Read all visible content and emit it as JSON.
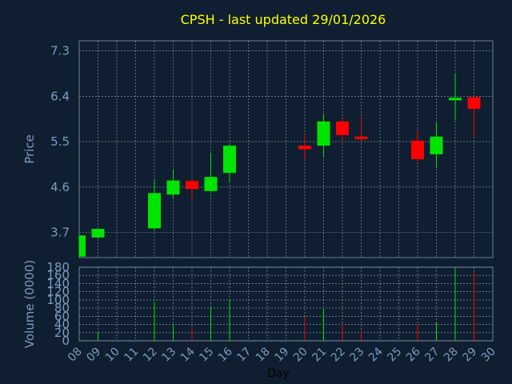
{
  "chart_data": [
    {
      "type": "candlestick",
      "title": "CPSH - last updated 29/01/2026",
      "ylabel": "Price",
      "xlabel": "Day",
      "ylim": [
        3.2,
        7.5
      ],
      "yticks": [
        "3.7",
        "4.6",
        "5.5",
        "6.4",
        "7.3"
      ],
      "x_ticks": [
        "08",
        "09",
        "10",
        "11",
        "12",
        "13",
        "14",
        "15",
        "16",
        "17",
        "18",
        "19",
        "20",
        "21",
        "22",
        "23",
        "24",
        "25",
        "26",
        "27",
        "28",
        "29",
        "30"
      ],
      "grid": true,
      "candles": [
        {
          "day": "08",
          "open": 3.22,
          "high": 3.65,
          "low": 3.2,
          "close": 3.64
        },
        {
          "day": "09",
          "open": 3.6,
          "high": 3.78,
          "low": 3.58,
          "close": 3.77
        },
        {
          "day": "12",
          "open": 3.78,
          "high": 4.75,
          "low": 3.76,
          "close": 4.48
        },
        {
          "day": "13",
          "open": 4.45,
          "high": 4.95,
          "low": 4.38,
          "close": 4.73
        },
        {
          "day": "14",
          "open": 4.72,
          "high": 4.74,
          "low": 4.35,
          "close": 4.56
        },
        {
          "day": "15",
          "open": 4.52,
          "high": 5.28,
          "low": 4.48,
          "close": 4.8
        },
        {
          "day": "16",
          "open": 4.88,
          "high": 5.45,
          "low": 4.7,
          "close": 5.42
        },
        {
          "day": "20",
          "open": 5.42,
          "high": 5.65,
          "low": 5.15,
          "close": 5.35
        },
        {
          "day": "21",
          "open": 5.42,
          "high": 6.05,
          "low": 5.2,
          "close": 5.9
        },
        {
          "day": "22",
          "open": 5.9,
          "high": 5.95,
          "low": 5.48,
          "close": 5.63
        },
        {
          "day": "23",
          "open": 5.6,
          "high": 6.0,
          "low": 5.52,
          "close": 5.55
        },
        {
          "day": "26",
          "open": 5.52,
          "high": 5.72,
          "low": 5.08,
          "close": 5.15
        },
        {
          "day": "27",
          "open": 5.25,
          "high": 5.88,
          "low": 4.98,
          "close": 5.6
        },
        {
          "day": "28",
          "open": 6.32,
          "high": 6.85,
          "low": 5.92,
          "close": 6.37
        },
        {
          "day": "29",
          "open": 6.38,
          "high": 6.4,
          "low": 5.58,
          "close": 6.15
        }
      ]
    },
    {
      "type": "bar",
      "ylabel": "Volume (0000)",
      "ylim": [
        0,
        180
      ],
      "yticks": [
        "0",
        "20",
        "40",
        "60",
        "80",
        "100",
        "120",
        "140",
        "160",
        "180"
      ],
      "categories": [
        "08",
        "09",
        "12",
        "13",
        "14",
        "15",
        "16",
        "20",
        "21",
        "22",
        "23",
        "26",
        "27",
        "28",
        "29"
      ],
      "values": [
        2,
        20,
        95,
        40,
        32,
        85,
        100,
        58,
        78,
        42,
        22,
        40,
        45,
        178,
        168
      ],
      "up": [
        true,
        true,
        true,
        true,
        false,
        true,
        true,
        false,
        true,
        false,
        false,
        false,
        true,
        true,
        false
      ]
    }
  ],
  "colors": {
    "background": "#0f1f31",
    "plot_border": "#6b7f96",
    "grid": "#c8d4e2",
    "title": "#ffff00",
    "axis_text": "#7e9ac0",
    "up": "#00e400",
    "down": "#ff0000"
  }
}
